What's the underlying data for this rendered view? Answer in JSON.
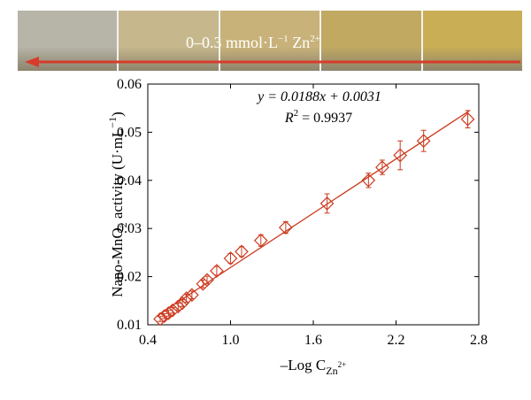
{
  "header_strip": {
    "label": "0–0.3 mmol·L",
    "label_sup": "−1",
    "label_ion": " Zn",
    "label_ion_sup": "2+",
    "panel_colors": [
      "#b7b4a8",
      "#c6b78c",
      "#c8b27a",
      "#c1a962",
      "#c9ae55"
    ],
    "arrow_color": "#d63c2c"
  },
  "chart_data": {
    "type": "scatter",
    "color": "#cc3a1f",
    "xlabel": "–Log C",
    "xlabel_sub": "Zn",
    "xlabel_subsup": "2+",
    "ylabel": "Nano-MnO",
    "ylabel_sub": "2",
    "ylabel_rest": " activity (U·mL",
    "ylabel_sup": "−1",
    "ylabel_end": ")",
    "xlim": [
      0.4,
      2.8
    ],
    "ylim": [
      0.01,
      0.06
    ],
    "xticks": [
      0.4,
      1.0,
      1.6,
      2.2,
      2.8
    ],
    "xtick_labels": [
      "0.4",
      "1.0",
      "1.6",
      "2.2",
      "2.8"
    ],
    "yticks": [
      0.01,
      0.02,
      0.03,
      0.04,
      0.05,
      0.06
    ],
    "ytick_labels": [
      "0.01",
      "0.02",
      "0.03",
      "0.04",
      "0.05",
      "0.06"
    ],
    "equation": "y = 0.0188x + 0.0031",
    "r2_label": "R",
    "r2_sup": "2",
    "r2_value": " = 0.9937",
    "fit": {
      "slope": 0.0188,
      "intercept": 0.0031
    },
    "points": [
      {
        "x": 0.49,
        "y": 0.0112,
        "err": 0.0005
      },
      {
        "x": 0.52,
        "y": 0.0118,
        "err": 0.0005
      },
      {
        "x": 0.55,
        "y": 0.0124,
        "err": 0.0006
      },
      {
        "x": 0.58,
        "y": 0.013,
        "err": 0.0006
      },
      {
        "x": 0.62,
        "y": 0.0138,
        "err": 0.0007
      },
      {
        "x": 0.65,
        "y": 0.0145,
        "err": 0.0007
      },
      {
        "x": 0.68,
        "y": 0.0155,
        "err": 0.0008
      },
      {
        "x": 0.72,
        "y": 0.0162,
        "err": 0.0008
      },
      {
        "x": 0.8,
        "y": 0.0185,
        "err": 0.0008
      },
      {
        "x": 0.83,
        "y": 0.0193,
        "err": 0.0008
      },
      {
        "x": 0.9,
        "y": 0.0212,
        "err": 0.0009
      },
      {
        "x": 1.0,
        "y": 0.0238,
        "err": 0.001
      },
      {
        "x": 1.08,
        "y": 0.0252,
        "err": 0.001
      },
      {
        "x": 1.22,
        "y": 0.0275,
        "err": 0.0012
      },
      {
        "x": 1.4,
        "y": 0.0302,
        "err": 0.0012
      },
      {
        "x": 1.7,
        "y": 0.0352,
        "err": 0.002
      },
      {
        "x": 2.0,
        "y": 0.04,
        "err": 0.0015
      },
      {
        "x": 2.1,
        "y": 0.0427,
        "err": 0.0015
      },
      {
        "x": 2.23,
        "y": 0.0452,
        "err": 0.003
      },
      {
        "x": 2.4,
        "y": 0.0482,
        "err": 0.0022
      },
      {
        "x": 2.72,
        "y": 0.0527,
        "err": 0.0018
      }
    ]
  }
}
